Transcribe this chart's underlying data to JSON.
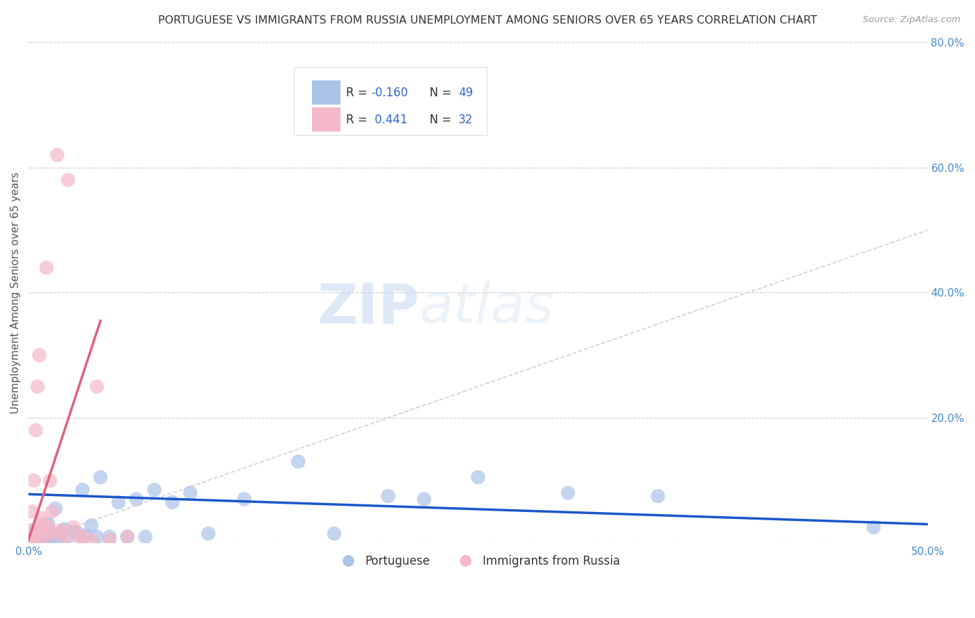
{
  "title": "PORTUGUESE VS IMMIGRANTS FROM RUSSIA UNEMPLOYMENT AMONG SENIORS OVER 65 YEARS CORRELATION CHART",
  "source": "Source: ZipAtlas.com",
  "ylabel": "Unemployment Among Seniors over 65 years",
  "xlim": [
    0.0,
    0.5
  ],
  "ylim": [
    0.0,
    0.8
  ],
  "xticks": [
    0.0,
    0.1,
    0.2,
    0.3,
    0.4,
    0.5
  ],
  "yticks": [
    0.0,
    0.2,
    0.4,
    0.6,
    0.8
  ],
  "xtick_labels_show": [
    "0.0%",
    "",
    "",
    "",
    "",
    "50.0%"
  ],
  "ytick_labels_show": [
    "",
    "20.0%",
    "40.0%",
    "60.0%",
    "80.0%"
  ],
  "grid_color": "#cccccc",
  "background_color": "#ffffff",
  "portuguese_color": "#aac4e8",
  "russia_color": "#f4b8c8",
  "portuguese_line_color": "#1a56cc",
  "russia_line_color": "#e0607a",
  "diag_line_color": "#cccccc",
  "legend_R1": "-0.160",
  "legend_N1": "49",
  "legend_R2": "0.441",
  "legend_N2": "32",
  "legend_label1": "Portuguese",
  "legend_label2": "Immigrants from Russia",
  "watermark_zip": "ZIP",
  "watermark_atlas": "atlas",
  "portuguese_line_x0": 0.0,
  "portuguese_line_y0": 0.078,
  "portuguese_line_x1": 0.5,
  "portuguese_line_y1": 0.03,
  "russia_line_x0": 0.0,
  "russia_line_y0": 0.005,
  "russia_line_x1": 0.04,
  "russia_line_y1": 0.355,
  "portuguese_x": [
    0.001,
    0.002,
    0.003,
    0.003,
    0.004,
    0.004,
    0.005,
    0.005,
    0.006,
    0.007,
    0.008,
    0.009,
    0.01,
    0.01,
    0.011,
    0.012,
    0.013,
    0.014,
    0.015,
    0.016,
    0.017,
    0.018,
    0.02,
    0.022,
    0.025,
    0.028,
    0.03,
    0.032,
    0.035,
    0.038,
    0.04,
    0.045,
    0.05,
    0.055,
    0.06,
    0.065,
    0.07,
    0.08,
    0.09,
    0.1,
    0.12,
    0.15,
    0.17,
    0.2,
    0.22,
    0.25,
    0.3,
    0.35,
    0.47
  ],
  "portuguese_y": [
    0.005,
    0.01,
    0.003,
    0.018,
    0.005,
    0.022,
    0.008,
    0.003,
    0.012,
    0.02,
    0.005,
    0.01,
    0.028,
    0.008,
    0.03,
    0.01,
    0.015,
    0.012,
    0.055,
    0.008,
    0.012,
    0.015,
    0.022,
    0.01,
    0.018,
    0.015,
    0.085,
    0.012,
    0.028,
    0.01,
    0.105,
    0.01,
    0.065,
    0.01,
    0.07,
    0.01,
    0.085,
    0.065,
    0.08,
    0.015,
    0.07,
    0.13,
    0.015,
    0.075,
    0.07,
    0.105,
    0.08,
    0.075,
    0.025
  ],
  "russia_x": [
    0.001,
    0.001,
    0.002,
    0.002,
    0.003,
    0.003,
    0.004,
    0.004,
    0.005,
    0.005,
    0.006,
    0.006,
    0.007,
    0.008,
    0.009,
    0.01,
    0.01,
    0.011,
    0.012,
    0.013,
    0.015,
    0.016,
    0.018,
    0.02,
    0.022,
    0.025,
    0.028,
    0.03,
    0.035,
    0.038,
    0.045,
    0.055
  ],
  "russia_y": [
    0.005,
    0.02,
    0.008,
    0.05,
    0.01,
    0.1,
    0.005,
    0.18,
    0.015,
    0.25,
    0.02,
    0.3,
    0.04,
    0.03,
    0.01,
    0.02,
    0.44,
    0.025,
    0.1,
    0.05,
    0.015,
    0.62,
    0.02,
    0.01,
    0.58,
    0.025,
    0.01,
    0.01,
    0.005,
    0.25,
    0.005,
    0.01
  ]
}
